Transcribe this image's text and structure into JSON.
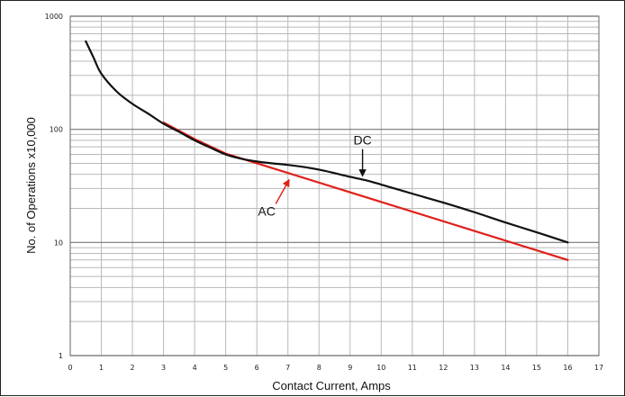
{
  "chart_data": {
    "type": "line",
    "title": "",
    "xlabel": "Contact Current, Amps",
    "ylabel": "No. of Operations x10,000",
    "xlim": [
      0,
      17
    ],
    "ylim": [
      1,
      1000
    ],
    "yscale": "log",
    "grid": true,
    "x_ticks": [
      "0",
      "1",
      "2",
      "3",
      "4",
      "5",
      "6",
      "7",
      "8",
      "9",
      "10",
      "11",
      "12",
      "13",
      "14",
      "15",
      "16",
      "17"
    ],
    "y_ticks": [
      "1",
      "10",
      "100",
      "1000"
    ],
    "series": [
      {
        "name": "DC",
        "color": "#111111",
        "points": [
          [
            0.5,
            600
          ],
          [
            0.75,
            430
          ],
          [
            1.0,
            310
          ],
          [
            1.5,
            215
          ],
          [
            2.0,
            168
          ],
          [
            2.5,
            138
          ],
          [
            3.0,
            112
          ],
          [
            3.5,
            95
          ],
          [
            4.0,
            80
          ],
          [
            4.5,
            69
          ],
          [
            5.0,
            60
          ],
          [
            5.5,
            55
          ],
          [
            6.0,
            52
          ],
          [
            6.5,
            50
          ],
          [
            7.0,
            48.5
          ],
          [
            7.5,
            46.5
          ],
          [
            8.0,
            44
          ],
          [
            8.5,
            41
          ],
          [
            9.0,
            38
          ],
          [
            9.5,
            35.5
          ],
          [
            10.0,
            32.5
          ],
          [
            11.0,
            27
          ],
          [
            12.0,
            22.5
          ],
          [
            13.0,
            18.5
          ],
          [
            14.0,
            15
          ],
          [
            15.0,
            12.3
          ],
          [
            16.0,
            10
          ]
        ]
      },
      {
        "name": "AC",
        "color": "#e0201b",
        "points": [
          [
            3.0,
            115
          ],
          [
            4.0,
            82
          ],
          [
            5.0,
            61
          ],
          [
            16.0,
            7
          ]
        ]
      }
    ],
    "annotations": [
      {
        "text": "DC",
        "series": "DC",
        "arrow_to": [
          9.4,
          36.5
        ]
      },
      {
        "text": "AC",
        "series": "AC",
        "arrow_to": [
          7.1,
          38
        ]
      }
    ]
  }
}
